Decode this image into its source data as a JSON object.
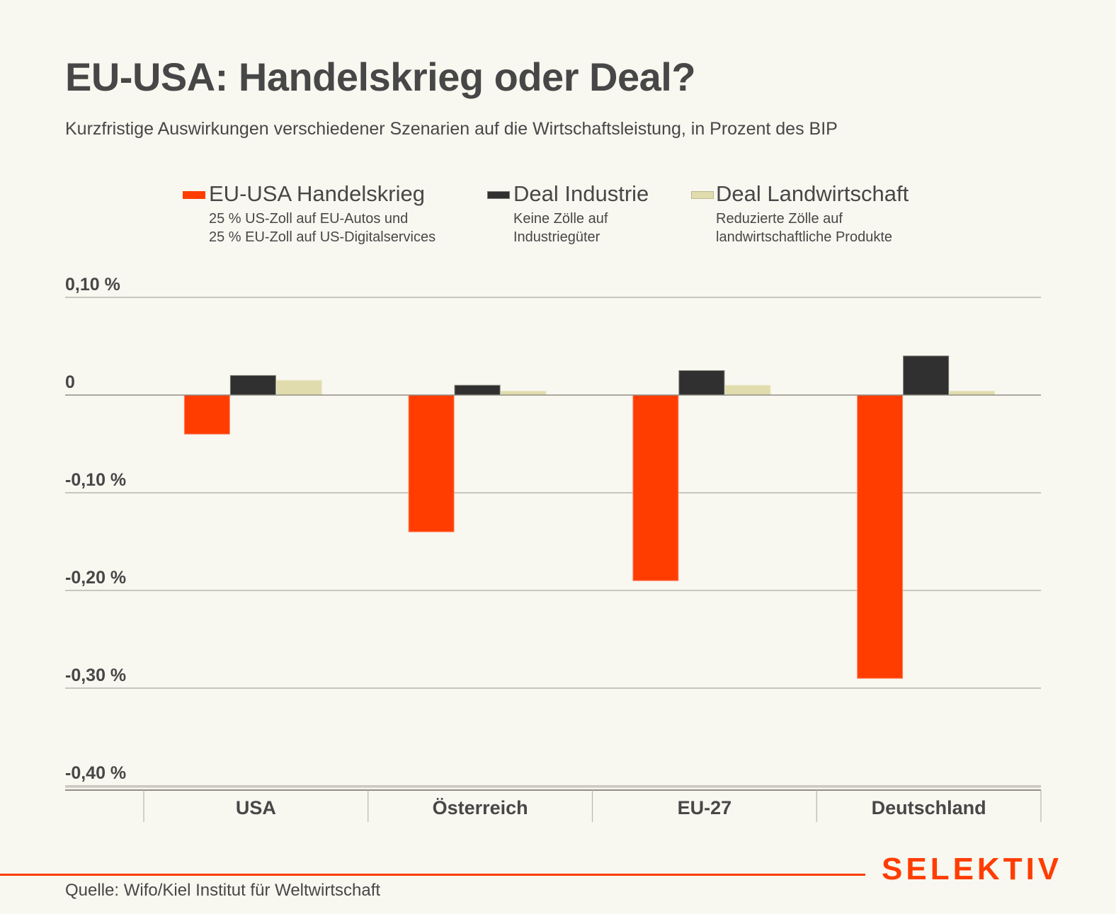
{
  "header": {
    "title": "EU-USA: Handelskrieg oder Deal?",
    "subtitle": "Kurzfristige Auswirkungen verschiedener Szenarien auf die Wirtschaftsleistung, in Prozent des BIP"
  },
  "legend": [
    {
      "name": "EU-USA Handelskrieg",
      "desc": [
        "25 % US-Zoll auf EU-Autos und",
        "25 % EU-Zoll auf US-Digitalservices"
      ],
      "color": "#ff3d00"
    },
    {
      "name": "Deal Industrie",
      "desc": [
        "Keine Zölle auf",
        "Industriegüter"
      ],
      "color": "#303030"
    },
    {
      "name": "Deal Landwirtschaft",
      "desc": [
        "Reduzierte Zölle auf",
        "landwirtschaftliche Produkte"
      ],
      "color": "#e0dcad"
    }
  ],
  "chart_data": {
    "type": "bar",
    "title": "EU-USA: Handelskrieg oder Deal?",
    "subtitle": "Kurzfristige Auswirkungen verschiedener Szenarien auf die Wirtschaftsleistung, in Prozent des BIP",
    "xlabel": "",
    "ylabel": "",
    "categories": [
      "USA",
      "Österreich",
      "EU-27",
      "Deutschland"
    ],
    "highlight_category": "Österreich",
    "highlight_color": "#ff3d00",
    "series": [
      {
        "name": "EU-USA Handelskrieg",
        "color": "#ff3d00",
        "values": [
          -0.04,
          -0.14,
          -0.19,
          -0.29
        ]
      },
      {
        "name": "Deal Industrie",
        "color": "#303030",
        "values": [
          0.02,
          0.01,
          0.025,
          0.04
        ]
      },
      {
        "name": "Deal Landwirtschaft",
        "color": "#e0dcad",
        "values": [
          0.015,
          0.004,
          0.01,
          0.004
        ]
      }
    ],
    "ylim": [
      -0.4,
      0.1
    ],
    "yticks": [
      0.1,
      0,
      -0.1,
      -0.2,
      -0.3,
      -0.4
    ],
    "ytick_labels": [
      "0,10 %",
      "0",
      "-0,10 %",
      "-0,20 %",
      "-0,30 %",
      "-0,40 %"
    ],
    "grid": true,
    "legend_position": "top"
  },
  "footer": {
    "source": "Quelle: Wifo/Kiel Institut für Weltwirtschaft",
    "brand": "SELEKTIV"
  }
}
